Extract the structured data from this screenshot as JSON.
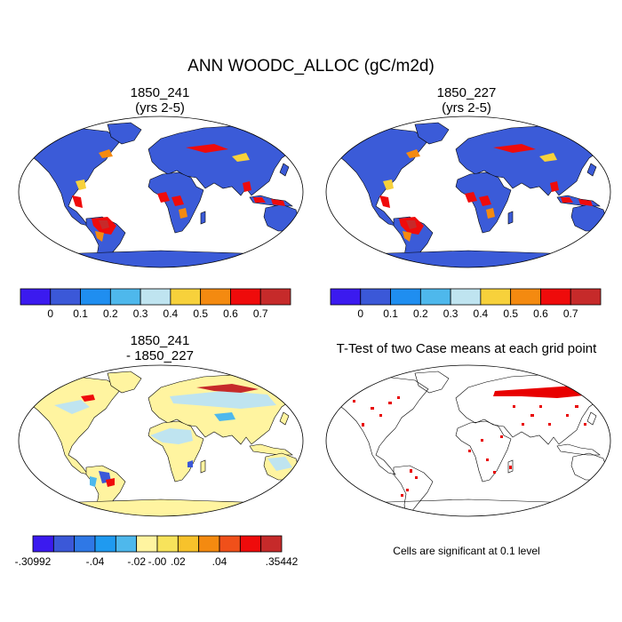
{
  "title": "ANN WOODC_ALLOC (gC/m2d)",
  "panels": [
    {
      "id": "top-left",
      "title": "1850_241\n(yrs 2-5)",
      "kind": "absolute"
    },
    {
      "id": "top-right",
      "title": "1850_227\n(yrs 2-5)",
      "kind": "absolute"
    },
    {
      "id": "bottom-left",
      "title": "1850_241\n- 1850_227",
      "kind": "difference"
    },
    {
      "id": "bottom-right",
      "title": "T-Test of two Case means at each grid point",
      "kind": "significance"
    }
  ],
  "colorbars": {
    "absolute": {
      "colors": [
        "#3b1aef",
        "#3b58d8",
        "#1f8ef0",
        "#4eb8ec",
        "#bfe4f0",
        "#f7d13b",
        "#f48a10",
        "#ef0b0b",
        "#c62a2a"
      ],
      "labels": [
        "0",
        "0.1",
        "0.2",
        "0.3",
        "0.4",
        "0.5",
        "0.6",
        "0.7"
      ]
    },
    "difference": {
      "colors": [
        "#3b1aef",
        "#3b58d8",
        "#2f78e6",
        "#1f9af0",
        "#4eb8ec",
        "#fff4a0",
        "#f7e35b",
        "#f7c22b",
        "#f48a10",
        "#f0501a",
        "#ef0b0b",
        "#c62a2a"
      ],
      "labels": [
        ".30992",
        ".04",
        ".02",
        ".00",
        ".02",
        ".04",
        ".35442"
      ],
      "label_signs": [
        "-",
        "-",
        "-",
        "-",
        "",
        "",
        ""
      ]
    }
  },
  "map_colors": {
    "absolute_land": "#3b5bd8",
    "difference_land": "#fff4a0",
    "significant": "#e80000"
  },
  "note": "Cells are significant at 0.1 level"
}
